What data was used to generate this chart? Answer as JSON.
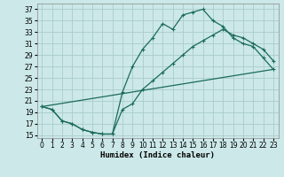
{
  "xlabel": "Humidex (Indice chaleur)",
  "bg_color": "#cce8e8",
  "grid_color": "#aacccc",
  "line_color": "#1a6b5a",
  "xlim": [
    -0.5,
    23.5
  ],
  "ylim": [
    14.5,
    38
  ],
  "xticks": [
    0,
    1,
    2,
    3,
    4,
    5,
    6,
    7,
    8,
    9,
    10,
    11,
    12,
    13,
    14,
    15,
    16,
    17,
    18,
    19,
    20,
    21,
    22,
    23
  ],
  "yticks": [
    15,
    17,
    19,
    21,
    23,
    25,
    27,
    29,
    31,
    33,
    35,
    37
  ],
  "line1_x": [
    0,
    1,
    2,
    3,
    4,
    5,
    6,
    7,
    8,
    9,
    10,
    11,
    12,
    13,
    14,
    15,
    16,
    17,
    18,
    19,
    20,
    21,
    22,
    23
  ],
  "line1_y": [
    20.0,
    19.5,
    17.5,
    17.0,
    16.0,
    15.5,
    15.2,
    15.2,
    22.5,
    27.0,
    30.0,
    32.0,
    34.5,
    33.5,
    36.0,
    36.5,
    37.0,
    35.0,
    34.0,
    32.0,
    31.0,
    30.5,
    28.5,
    26.5
  ],
  "line2_x": [
    0,
    1,
    2,
    3,
    4,
    5,
    6,
    7,
    8,
    9,
    10,
    11,
    12,
    13,
    14,
    15,
    16,
    17,
    18,
    19,
    20,
    21,
    22,
    23
  ],
  "line2_y": [
    20.0,
    19.5,
    17.5,
    17.0,
    16.0,
    15.5,
    15.2,
    15.2,
    19.5,
    20.5,
    23.0,
    24.5,
    26.0,
    27.5,
    29.0,
    30.5,
    31.5,
    32.5,
    33.5,
    32.5,
    32.0,
    31.0,
    30.0,
    28.0
  ],
  "line3_x": [
    0,
    23
  ],
  "line3_y": [
    20.0,
    26.5
  ],
  "tick_fontsize": 5.5,
  "xlabel_fontsize": 6.5,
  "linewidth": 0.9,
  "markersize": 2.5
}
